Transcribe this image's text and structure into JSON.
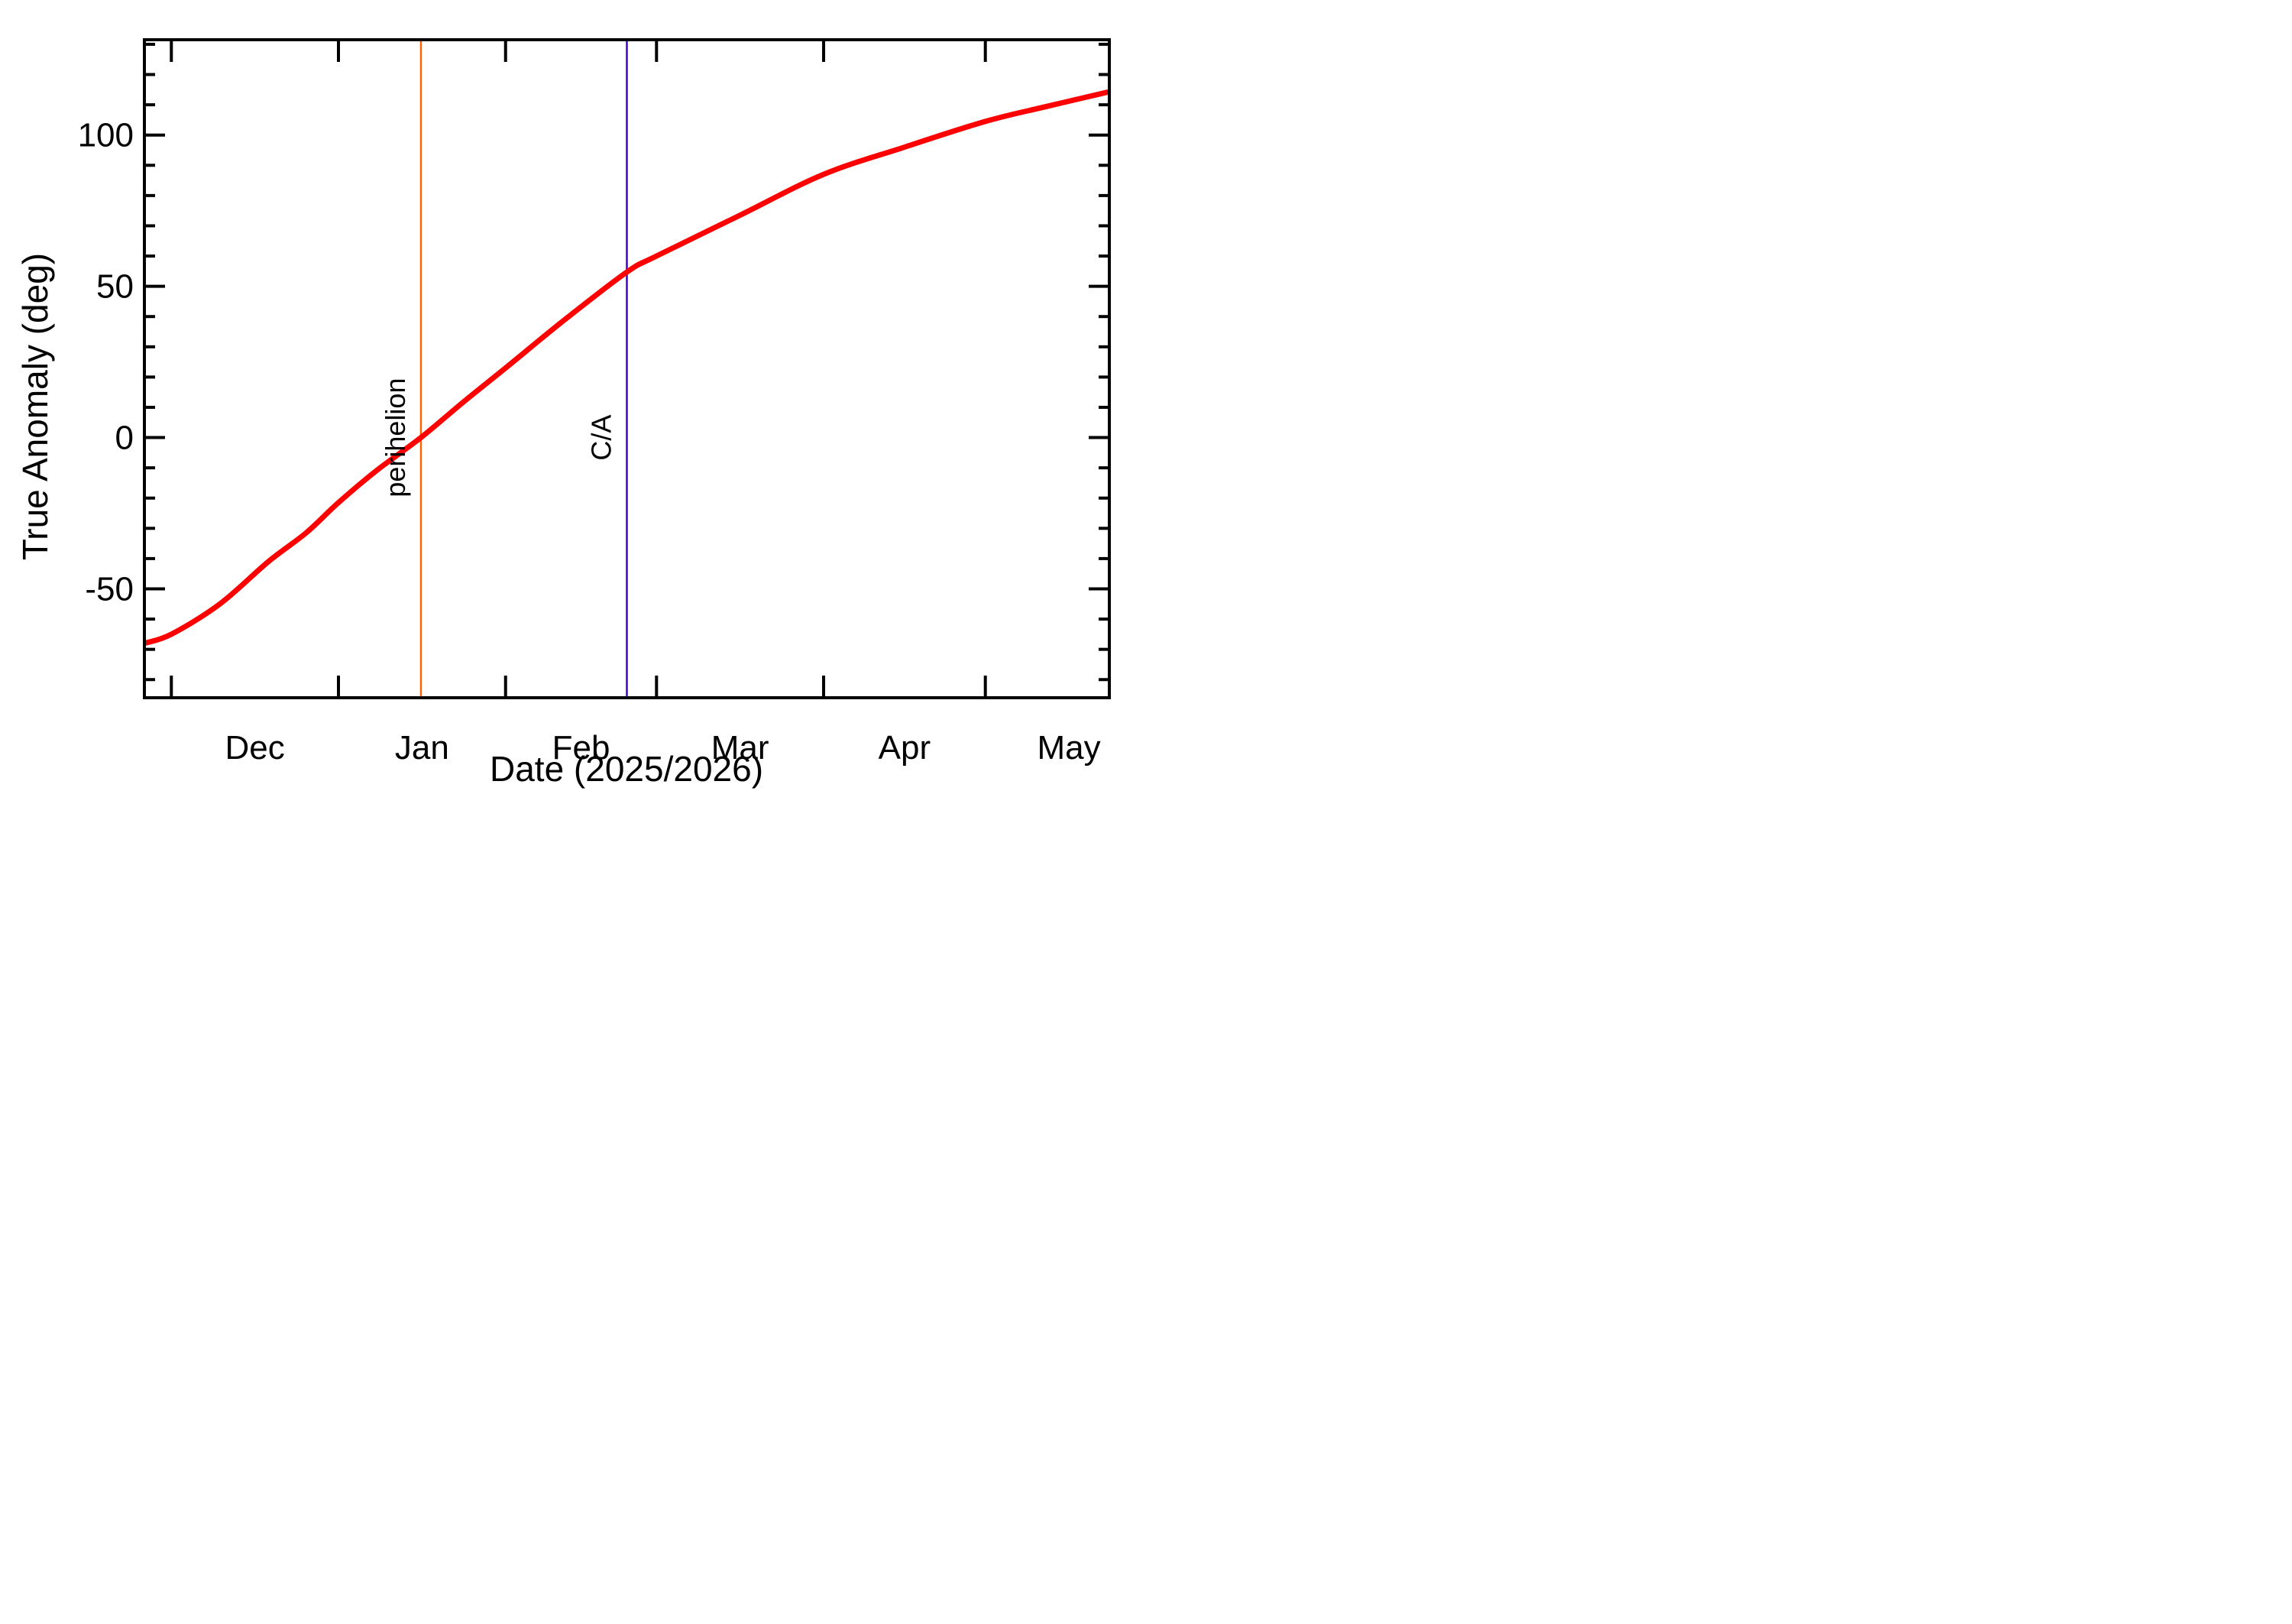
{
  "chart_data": {
    "type": "line",
    "title": "",
    "xlabel": "Date (2025/2026)",
    "ylabel": "True Anomaly (deg)",
    "x_unit": "days from 2026-01-01",
    "x_domain": [
      -36,
      143
    ],
    "y_domain": [
      -86,
      131.5
    ],
    "y_major_ticks": [
      -50,
      0,
      50,
      100
    ],
    "y_minor_step": 10,
    "grid": "off",
    "x_month_ticks": [
      {
        "label": "Dec",
        "tick_day": -31,
        "label_day": -15.5
      },
      {
        "label": "Jan",
        "tick_day": 0,
        "label_day": 15.5
      },
      {
        "label": "Feb",
        "tick_day": 31,
        "label_day": 45
      },
      {
        "label": "Mar",
        "tick_day": 59,
        "label_day": 74.5
      },
      {
        "label": "Apr",
        "tick_day": 90,
        "label_day": 105
      },
      {
        "label": "May",
        "tick_day": 120,
        "label_day": 135.5
      }
    ],
    "series": [
      {
        "name": "true-anomaly",
        "color": "#ff0000",
        "points": [
          [
            -36,
            -68
          ],
          [
            -31,
            -65
          ],
          [
            -22,
            -55
          ],
          [
            -13,
            -41
          ],
          [
            -6,
            -31.5
          ],
          [
            0,
            -21.5
          ],
          [
            7,
            -11
          ],
          [
            15.3,
            0
          ],
          [
            23,
            11.5
          ],
          [
            31,
            23
          ],
          [
            42,
            39
          ],
          [
            53.5,
            54.7
          ],
          [
            59,
            60
          ],
          [
            74.5,
            73.5
          ],
          [
            90,
            87
          ],
          [
            105,
            96
          ],
          [
            120,
            104.5
          ],
          [
            131.5,
            109.5
          ],
          [
            143,
            114.3
          ]
        ]
      }
    ],
    "markers": [
      {
        "name": "perihelion",
        "label": "perihelion",
        "day": 15.3,
        "color": "#ff6200"
      },
      {
        "name": "closest-approach",
        "label": "C/A",
        "day": 53.5,
        "color": "#4400cc"
      }
    ],
    "frame_color": "#000000",
    "background": "#ffffff"
  }
}
